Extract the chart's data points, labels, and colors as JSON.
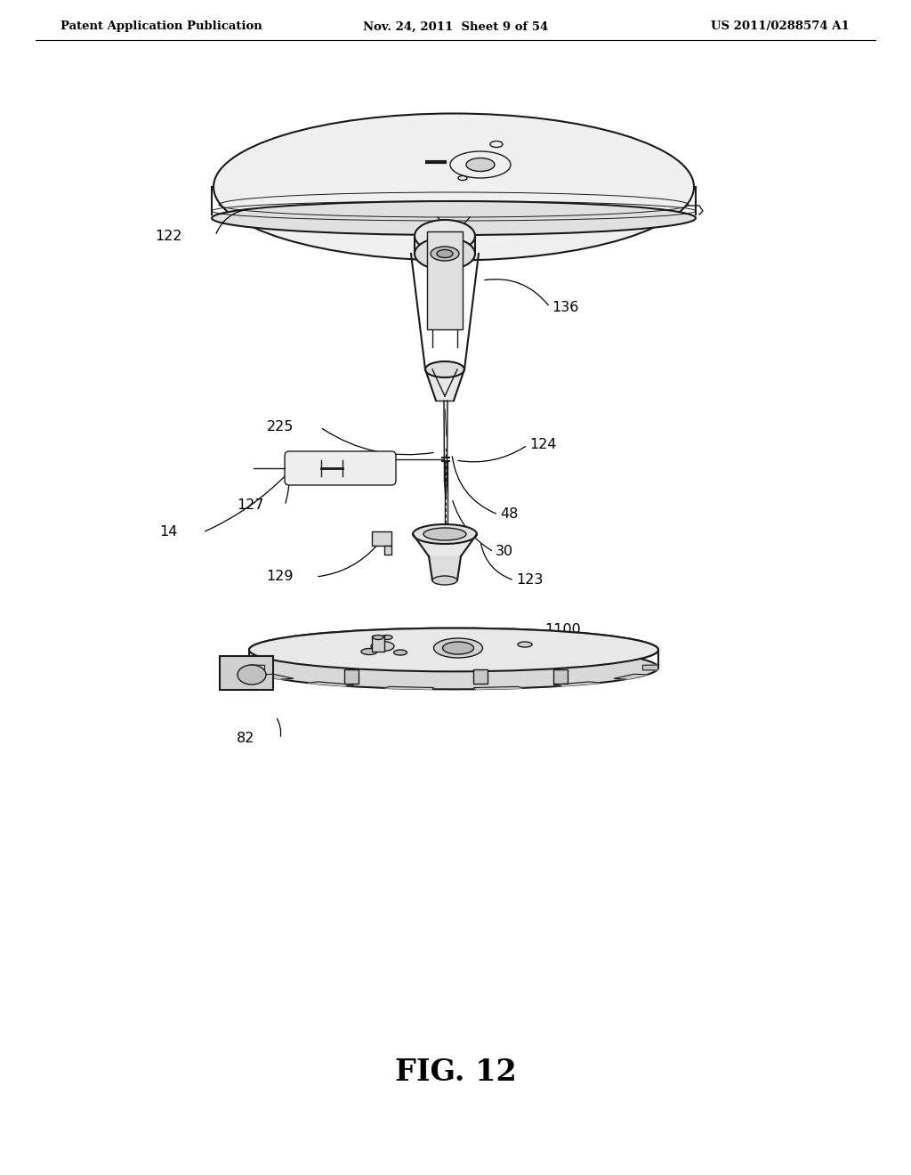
{
  "bg": "#ffffff",
  "lc": "#1a1a1a",
  "header_left": "Patent Application Publication",
  "header_center": "Nov. 24, 2011  Sheet 9 of 54",
  "header_right": "US 2011/0288574 A1",
  "fig_label": "FIG. 12"
}
